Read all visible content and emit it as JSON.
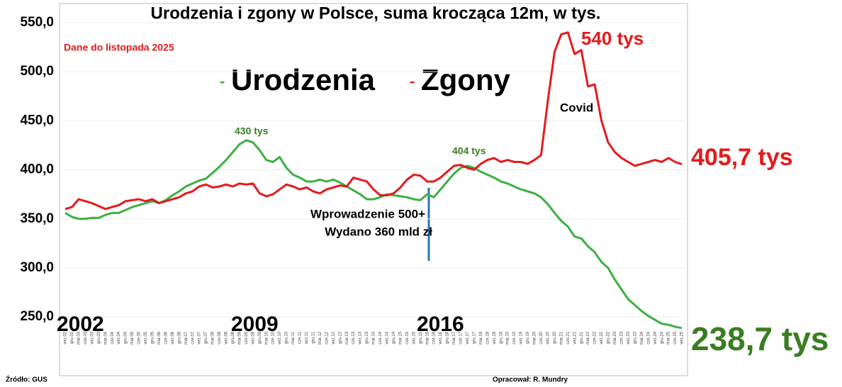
{
  "chart_data": {
    "type": "line",
    "title": "Urodzenia i zgony w Polsce, suma krocząca 12m, w tys.",
    "subtitle": "Dane do listopada 2025",
    "categories": [
      "wrz.02",
      "gru.02",
      "mar.03",
      "cze.03",
      "wrz.03",
      "gru.03",
      "mar.04",
      "cze.04",
      "wrz.04",
      "gru.04",
      "mar.05",
      "cze.05",
      "wrz.05",
      "gru.05",
      "mar.06",
      "cze.06",
      "wrz.06",
      "gru.06",
      "mar.07",
      "cze.07",
      "wrz.07",
      "gru.07",
      "mar.08",
      "cze.08",
      "wrz.08",
      "gru.08",
      "mar.09",
      "cze.09",
      "wrz.09",
      "gru.09",
      "mar.10",
      "cze.10",
      "wrz.10",
      "gru.10",
      "mar.11",
      "cze.11",
      "wrz.11",
      "gru.11",
      "mar.12",
      "cze.12",
      "wrz.12",
      "gru.12",
      "mar.13",
      "cze.13",
      "wrz.13",
      "gru.13",
      "mar.14",
      "cze.14",
      "wrz.14",
      "gru.14",
      "mar.15",
      "cze.15",
      "wrz.15",
      "gru.15",
      "mar.16",
      "cze.16",
      "wrz.16",
      "gru.16",
      "mar.17",
      "cze.17",
      "wrz.17",
      "gru.17",
      "mar.18",
      "cze.18",
      "wrz.18",
      "gru.18",
      "mar.19",
      "cze.19",
      "wrz.19",
      "gru.19",
      "mar.20",
      "cze.20",
      "wrz.20",
      "gru.20",
      "mar.21",
      "cze.21",
      "wrz.21",
      "gru.21",
      "mar.22",
      "cze.22",
      "wrz.22",
      "gru.22",
      "mar.23",
      "cze.23",
      "wrz.23",
      "gru.23",
      "mar.24",
      "cze.24",
      "wrz.24",
      "gru.24",
      "mar.25",
      "cze.25",
      "wrz.25"
    ],
    "series": [
      {
        "name": "Urodzenia",
        "color": "#3cb043",
        "values": [
          356,
          352,
          350,
          350,
          351,
          351,
          354,
          356,
          356,
          359,
          362,
          364,
          366,
          368,
          366,
          369,
          374,
          378,
          383,
          386,
          389,
          391,
          397,
          403,
          410,
          418,
          426,
          430,
          428,
          420,
          410,
          408,
          413,
          402,
          395,
          392,
          388,
          388,
          390,
          388,
          390,
          387,
          383,
          379,
          375,
          370,
          370,
          372,
          375,
          374,
          373,
          372,
          370,
          369,
          375,
          372,
          380,
          388,
          396,
          402,
          404,
          402,
          398,
          395,
          392,
          388,
          386,
          383,
          380,
          378,
          376,
          372,
          365,
          356,
          348,
          342,
          332,
          330,
          322,
          316,
          306,
          300,
          288,
          278,
          268,
          262,
          256,
          251,
          247,
          243,
          242,
          240,
          238.7
        ]
      },
      {
        "name": "Zgony",
        "color": "#e41a1c",
        "values": [
          360,
          362,
          370,
          368,
          366,
          363,
          360,
          362,
          364,
          368,
          369,
          370,
          368,
          370,
          366,
          368,
          370,
          372,
          376,
          378,
          383,
          385,
          382,
          383,
          385,
          383,
          386,
          385,
          386,
          376,
          373,
          375,
          380,
          385,
          383,
          380,
          382,
          378,
          376,
          380,
          382,
          384,
          383,
          392,
          390,
          388,
          380,
          374,
          374,
          376,
          382,
          390,
          395,
          394,
          388,
          388,
          392,
          398,
          404,
          405,
          402,
          400,
          406,
          410,
          412,
          408,
          410,
          408,
          408,
          406,
          410,
          415,
          470,
          520,
          538,
          540,
          518,
          522,
          485,
          487,
          450,
          428,
          418,
          412,
          408,
          404,
          406,
          408,
          410,
          408,
          412,
          408,
          405.7
        ]
      }
    ],
    "ylim": [
      240,
      555
    ],
    "yticks": [
      {
        "value": 250,
        "label": "250,0"
      },
      {
        "value": 300,
        "label": "300,0"
      },
      {
        "value": 350,
        "label": "350,0"
      },
      {
        "value": 400,
        "label": "400,0"
      },
      {
        "value": 450,
        "label": "450,0"
      },
      {
        "value": 500,
        "label": "500,0"
      },
      {
        "value": 550,
        "label": "550,0"
      }
    ],
    "grid": true,
    "annotations": [
      "430 tys",
      "404 tys",
      "540 tys",
      "405,7 tys",
      "238,7 tys",
      "Covid",
      "Wprowadzenie 500+",
      "Wydano 360 mld zł",
      "2002",
      "2009",
      "2016"
    ],
    "source": "Źródło: GUS",
    "author": "Opracował: R. Mundry"
  }
}
